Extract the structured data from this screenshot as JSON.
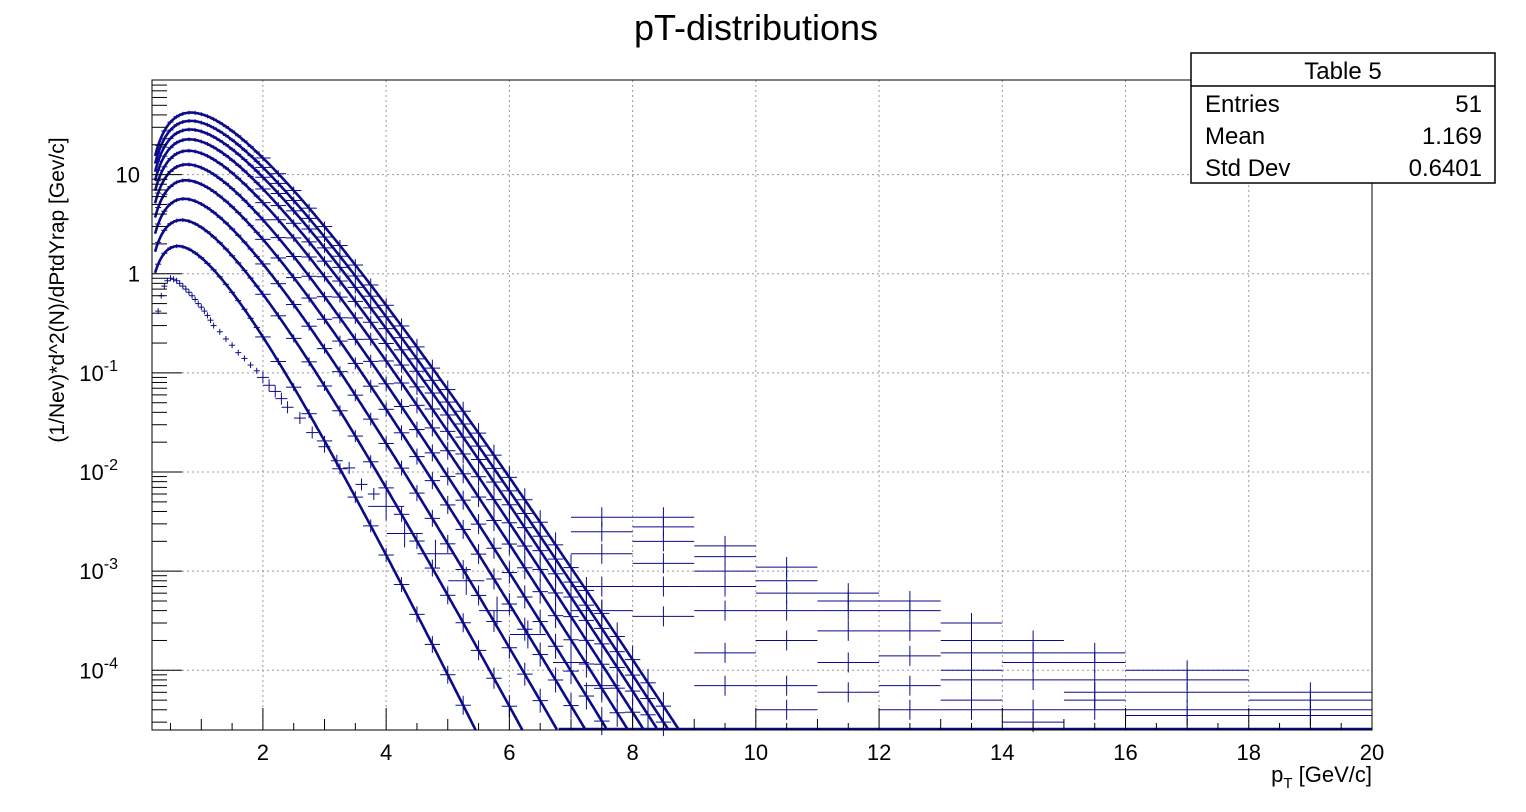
{
  "chart_data": {
    "type": "scatter",
    "title": "pT-distributions",
    "xlabel": "p_T [GeV/c]",
    "ylabel": "(1/Nev)*d^2(N)/dPtdYrap  [Gev/c]",
    "x_range": [
      0.2,
      20
    ],
    "y_range": [
      2.5e-05,
      90
    ],
    "y_scale": "log",
    "grid": true,
    "x_ticks": [
      "2",
      "4",
      "6",
      "8",
      "10",
      "12",
      "14",
      "16",
      "18",
      "20"
    ],
    "y_ticks": [
      {
        "base": "10",
        "exp": "-4",
        "value": 0.0001
      },
      {
        "base": "10",
        "exp": "-3",
        "value": 0.001
      },
      {
        "base": "10",
        "exp": "-2",
        "value": 0.01
      },
      {
        "base": "10",
        "exp": "-1",
        "value": 0.1
      },
      {
        "base": "1",
        "exp": "",
        "value": 1
      },
      {
        "base": "10",
        "exp": "",
        "value": 10
      }
    ],
    "stats_box": {
      "title": "Table 5",
      "rows": [
        {
          "label": "Entries",
          "value": "51"
        },
        {
          "label": "Mean",
          "value": "1.169"
        },
        {
          "label": "Std Dev",
          "value": "0.6401"
        }
      ]
    },
    "colors": {
      "data": "#0b0b8a",
      "frame": "#000000",
      "grid": "#999999"
    },
    "series": [
      {
        "peak": 1.8,
        "T": 0.31,
        "x_end": 7.0
      },
      {
        "peak": 3.3,
        "T": 0.34,
        "x_end": 7.7
      },
      {
        "peak": 5.4,
        "T": 0.36,
        "x_end": 8.1
      },
      {
        "peak": 8.3,
        "T": 0.375,
        "x_end": 8.4
      },
      {
        "peak": 12.0,
        "T": 0.385,
        "x_end": 8.6
      },
      {
        "peak": 16.5,
        "T": 0.395,
        "x_end": 8.7
      },
      {
        "peak": 21.5,
        "T": 0.402,
        "x_end": 8.8
      },
      {
        "peak": 27.0,
        "T": 0.408,
        "x_end": 8.9
      },
      {
        "peak": 33.0,
        "T": 0.412,
        "x_end": 8.95
      },
      {
        "peak": 40.0,
        "T": 0.416,
        "x_end": 9.0
      }
    ],
    "low_points": [
      [
        0.3,
        0.42
      ],
      [
        0.35,
        0.6
      ],
      [
        0.4,
        0.75
      ],
      [
        0.45,
        0.85
      ],
      [
        0.5,
        0.9
      ],
      [
        0.55,
        0.88
      ],
      [
        0.6,
        0.85
      ],
      [
        0.65,
        0.8
      ],
      [
        0.7,
        0.75
      ],
      [
        0.75,
        0.7
      ],
      [
        0.8,
        0.65
      ],
      [
        0.85,
        0.6
      ],
      [
        0.9,
        0.55
      ],
      [
        0.95,
        0.5
      ],
      [
        1.0,
        0.46
      ],
      [
        1.05,
        0.42
      ],
      [
        1.1,
        0.38
      ],
      [
        1.15,
        0.34
      ],
      [
        1.2,
        0.3
      ],
      [
        1.3,
        0.26
      ],
      [
        1.4,
        0.22
      ],
      [
        1.5,
        0.19
      ],
      [
        1.6,
        0.16
      ],
      [
        1.7,
        0.14
      ],
      [
        1.8,
        0.12
      ],
      [
        1.9,
        0.105
      ],
      [
        2.0,
        0.09
      ],
      [
        2.1,
        0.075
      ],
      [
        2.2,
        0.065
      ],
      [
        2.3,
        0.055
      ],
      [
        2.4,
        0.045
      ],
      [
        2.6,
        0.035
      ],
      [
        2.8,
        0.025
      ],
      [
        3.0,
        0.018
      ],
      [
        3.2,
        0.013
      ],
      [
        3.4,
        0.011
      ],
      [
        3.6,
        0.0075
      ],
      [
        3.8,
        0.006
      ],
      [
        4.0,
        0.0045
      ],
      [
        4.3,
        0.0024
      ],
      [
        4.8,
        0.0015
      ],
      [
        5.3,
        0.0008
      ],
      [
        5.8,
        0.0004
      ],
      [
        6.3,
        0.00023
      ],
      [
        7.0,
        0.00012
      ],
      [
        7.5,
        7e-05
      ]
    ],
    "tail_points": [
      [
        7.5,
        0.0035
      ],
      [
        7.5,
        0.0025
      ],
      [
        7.5,
        0.0015
      ],
      [
        7.5,
        0.0007
      ],
      [
        7.5,
        0.0004
      ],
      [
        8.5,
        0.0035
      ],
      [
        8.5,
        0.0028
      ],
      [
        8.5,
        0.002
      ],
      [
        8.5,
        0.0012
      ],
      [
        8.5,
        0.0007
      ],
      [
        8.5,
        0.00035
      ],
      [
        9.5,
        0.0018
      ],
      [
        9.5,
        0.0014
      ],
      [
        9.5,
        0.001
      ],
      [
        9.5,
        0.0007
      ],
      [
        9.5,
        0.0004
      ],
      [
        9.5,
        0.00015
      ],
      [
        9.5,
        7e-05
      ],
      [
        10.5,
        0.0011
      ],
      [
        10.5,
        0.0008
      ],
      [
        10.5,
        0.0006
      ],
      [
        10.5,
        0.0004
      ],
      [
        10.5,
        0.0002
      ],
      [
        10.5,
        7e-05
      ],
      [
        10.5,
        4e-05
      ],
      [
        11.5,
        0.0006
      ],
      [
        11.5,
        0.0005
      ],
      [
        11.5,
        0.0004
      ],
      [
        11.5,
        0.00025
      ],
      [
        11.5,
        0.00012
      ],
      [
        11.5,
        6e-05
      ],
      [
        12.5,
        0.0005
      ],
      [
        12.5,
        0.0004
      ],
      [
        12.5,
        0.00025
      ],
      [
        12.5,
        0.00014
      ],
      [
        12.5,
        7e-05
      ],
      [
        12.5,
        4e-05
      ],
      [
        13.5,
        0.0003
      ],
      [
        13.5,
        0.0002
      ],
      [
        13.5,
        0.00015
      ],
      [
        13.5,
        0.0001
      ],
      [
        13.5,
        8e-05
      ],
      [
        13.5,
        5e-05
      ],
      [
        13.5,
        4e-05
      ],
      [
        14.5,
        0.0002
      ],
      [
        14.5,
        0.00015
      ],
      [
        14.5,
        0.00012
      ],
      [
        14.5,
        8e-05
      ],
      [
        14.5,
        4e-05
      ],
      [
        14.5,
        3e-05
      ],
      [
        15.5,
        0.00015
      ],
      [
        15.5,
        0.00012
      ],
      [
        15.5,
        8e-05
      ],
      [
        15.5,
        6e-05
      ],
      [
        15.5,
        5e-05
      ],
      [
        15.5,
        4e-05
      ],
      [
        17.0,
        0.0001
      ],
      [
        17.0,
        8e-05
      ],
      [
        17.0,
        6e-05
      ],
      [
        17.0,
        4e-05
      ],
      [
        17.0,
        3.5e-05
      ],
      [
        19.0,
        6e-05
      ],
      [
        19.0,
        5e-05
      ],
      [
        19.0,
        4e-05
      ],
      [
        19.0,
        3.5e-05
      ]
    ]
  }
}
